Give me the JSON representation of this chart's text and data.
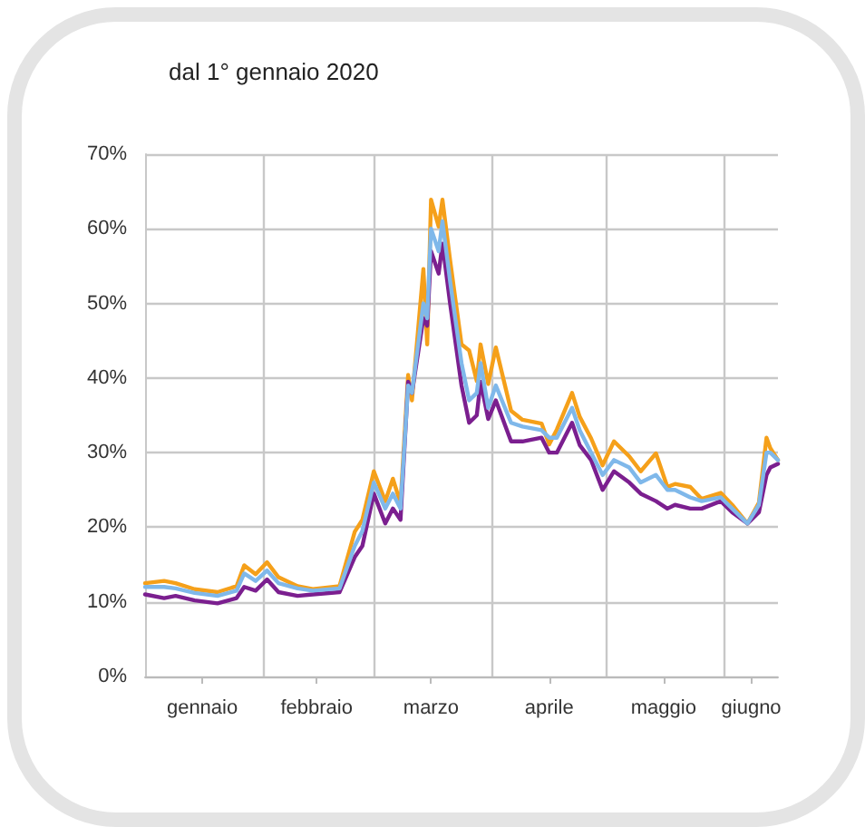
{
  "chart_data": {
    "type": "line",
    "title": "dal 1° gennaio 2020",
    "x": [
      "2020-01-01",
      "2020-01-06",
      "2020-01-09",
      "2020-01-14",
      "2020-01-20",
      "2020-01-25",
      "2020-01-27",
      "2020-01-30",
      "2020-02-02",
      "2020-02-05",
      "2020-02-10",
      "2020-02-14",
      "2020-02-21",
      "2020-02-25",
      "2020-02-27",
      "2020-03-01",
      "2020-03-04",
      "2020-03-06",
      "2020-03-08",
      "2020-03-10",
      "2020-03-11",
      "2020-03-14",
      "2020-03-15",
      "2020-03-16",
      "2020-03-18",
      "2020-03-19",
      "2020-03-21",
      "2020-03-24",
      "2020-03-26",
      "2020-03-28",
      "2020-03-29",
      "2020-03-31",
      "2020-04-02",
      "2020-04-06",
      "2020-04-09",
      "2020-04-14",
      "2020-04-16",
      "2020-04-18",
      "2020-04-22",
      "2020-04-24",
      "2020-04-27",
      "2020-04-30",
      "2020-05-03",
      "2020-05-07",
      "2020-05-10",
      "2020-05-14",
      "2020-05-17",
      "2020-05-19",
      "2020-05-23",
      "2020-05-26",
      "2020-05-31",
      "2020-06-03",
      "2020-06-07",
      "2020-06-10",
      "2020-06-12",
      "2020-06-13",
      "2020-06-15"
    ],
    "series": [
      {
        "color": "#f5a01a",
        "values": [
          12.5,
          12.8,
          12.5,
          11.7,
          11.3,
          12.1,
          14.9,
          13.7,
          15.3,
          13.3,
          12.1,
          11.7,
          12.1,
          19.4,
          21,
          27.5,
          23.5,
          26.5,
          23.2,
          40.4,
          37,
          54.6,
          44.5,
          63.9,
          60.3,
          63.9,
          55.8,
          44.5,
          43.7,
          39.6,
          44.5,
          39.2,
          44.1,
          35.6,
          34.4,
          33.9,
          31.1,
          33.1,
          38,
          34.8,
          31.9,
          28.3,
          31.5,
          29.5,
          27.5,
          29.9,
          25.4,
          25.8,
          25.4,
          23.8,
          24.6,
          23,
          20.5,
          23.3,
          32,
          30.6,
          29
        ]
      },
      {
        "color": "#7b1f8f",
        "values": [
          11,
          10.5,
          10.8,
          10.2,
          9.8,
          10.5,
          12,
          11.5,
          13,
          11.3,
          10.8,
          11,
          11.3,
          16,
          17.5,
          24.5,
          20.5,
          22.5,
          21,
          39.5,
          38,
          48,
          47,
          57,
          54,
          58,
          50,
          39,
          34,
          35,
          39.5,
          34.5,
          37,
          31.5,
          31.5,
          32,
          30,
          30,
          34,
          31,
          29,
          25,
          27.5,
          26,
          24.5,
          23.5,
          22.5,
          23,
          22.5,
          22.5,
          23.5,
          22,
          20.5,
          22,
          27,
          28,
          28.5
        ]
      },
      {
        "color": "#7fb8ea",
        "values": [
          12,
          12,
          11.8,
          11.2,
          10.8,
          11.5,
          13.8,
          12.8,
          14.2,
          12.5,
          11.8,
          11.5,
          11.8,
          17.5,
          19.5,
          26,
          22.5,
          24.5,
          22.5,
          39,
          38,
          50,
          48,
          60,
          57,
          61,
          53,
          42,
          37,
          38,
          42,
          36,
          39,
          34,
          33.5,
          33,
          32,
          32,
          36,
          33,
          30,
          27,
          29,
          28,
          26,
          27,
          25,
          25,
          24,
          23.5,
          24,
          22.5,
          20.5,
          23,
          30,
          30,
          29
        ]
      }
    ],
    "xlim": [
      "2020-01-01",
      "2020-06-15"
    ],
    "xticks": [
      {
        "value": "2020-01-16",
        "label": "gennaio"
      },
      {
        "value": "2020-02-01",
        "label": null
      },
      {
        "value": "2020-02-15",
        "label": "febbraio"
      },
      {
        "value": "2020-03-01",
        "label": null
      },
      {
        "value": "2020-03-16",
        "label": "marzo"
      },
      {
        "value": "2020-04-01",
        "label": null
      },
      {
        "value": "2020-04-16",
        "label": "aprile"
      },
      {
        "value": "2020-05-01",
        "label": null
      },
      {
        "value": "2020-05-16",
        "label": "maggio"
      },
      {
        "value": "2020-06-01",
        "label": null
      },
      {
        "value": "2020-06-08",
        "label": "giugno"
      }
    ],
    "ylim": [
      0,
      70
    ],
    "yticks": [
      {
        "value": 0,
        "label": "0%"
      },
      {
        "value": 10,
        "label": "10%"
      },
      {
        "value": 20,
        "label": "20%"
      },
      {
        "value": 30,
        "label": "30%"
      },
      {
        "value": 40,
        "label": "40%"
      },
      {
        "value": 50,
        "label": "50%"
      },
      {
        "value": 60,
        "label": "60%"
      },
      {
        "value": 70,
        "label": "70%"
      }
    ],
    "grid": true,
    "marker": "none",
    "line_style": "solid"
  }
}
